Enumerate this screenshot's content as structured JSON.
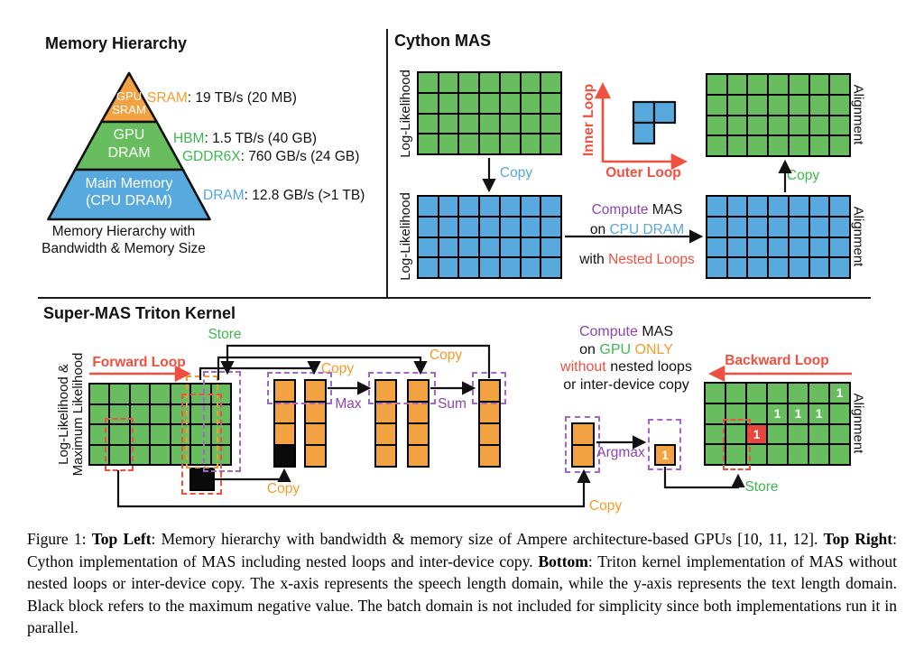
{
  "palette": {
    "ink": "#111111",
    "green_cell": "#68bd5f",
    "blue_cell": "#58a9de",
    "orange_cell": "#f2a240",
    "red_cell": "#e8453c",
    "black_cell": "#0a0a0a",
    "green_text": "#3cb94e",
    "blue_text": "#55a8e0",
    "orange_text": "#f49d2a",
    "red": "#f0503f",
    "purple": "#8d44b8",
    "purple_dash": "#a566cc"
  },
  "memory": {
    "title": "Memory Hierarchy",
    "pyramid_levels": [
      {
        "line1": "GPU",
        "line2": "SRAM",
        "color": "orange_cell"
      },
      {
        "line1": "GPU",
        "line2": "DRAM",
        "color": "green_cell"
      },
      {
        "line1": "Main Memory",
        "line2": "(CPU DRAM)",
        "color": "blue_cell"
      }
    ],
    "specs": [
      {
        "segments": [
          {
            "t": "SRAM",
            "c": "orange_text"
          },
          {
            "t": ": 19 TB/s (20 MB)",
            "c": "ink"
          }
        ]
      },
      {
        "segments": [
          {
            "t": "HBM",
            "c": "green_text"
          },
          {
            "t": ": 1.5 TB/s (40 GB)",
            "c": "ink"
          }
        ]
      },
      {
        "segments": [
          {
            "t": "GDDR6X",
            "c": "green_text"
          },
          {
            "t": ": 760 GB/s (24 GB)",
            "c": "ink"
          }
        ]
      },
      {
        "segments": [
          {
            "t": "DRAM",
            "c": "blue_text"
          },
          {
            "t": ": 12.8 GB/s (>1 TB)",
            "c": "ink"
          }
        ]
      }
    ],
    "caption_line1": "Memory Hierarchy with",
    "caption_line2": "Bandwidth & Memory Size"
  },
  "cython": {
    "title": "Cython MAS",
    "axis_ll_top": "Log-Likelihood",
    "axis_ll_bottom": "Log-Likelihood",
    "axis_align_top": "Alignment",
    "axis_align_bottom": "Alignment",
    "copy_down": "Copy",
    "copy_up": "Copy",
    "inner_loop": "Inner Loop",
    "outer_loop": "Outer Loop",
    "tiles_icon": "nested-loop-order-tiles",
    "compute_line1": [
      {
        "t": "Compute ",
        "c": "purple"
      },
      {
        "t": "MAS",
        "c": "ink"
      }
    ],
    "compute_line2": [
      {
        "t": "on ",
        "c": "ink"
      },
      {
        "t": "CPU DRAM",
        "c": "blue_text"
      }
    ],
    "compute_line3": [
      {
        "t": "with ",
        "c": "ink"
      },
      {
        "t": "Nested Loops",
        "c": "red"
      }
    ],
    "grids": {
      "ll_green": {
        "rows": 4,
        "cols": 7,
        "fill": "green_cell"
      },
      "ll_blue": {
        "rows": 4,
        "cols": 7,
        "fill": "blue_cell"
      },
      "align_green": {
        "rows": 4,
        "cols": 7,
        "fill": "green_cell"
      },
      "align_blue": {
        "rows": 4,
        "cols": 7,
        "fill": "blue_cell"
      }
    }
  },
  "triton": {
    "title": "Super-MAS Triton Kernel",
    "axis_left_line1": "Log-Likelihood &",
    "axis_left_line2": "Maximum Likelihood",
    "axis_right": "Alignment",
    "forward_loop": "Forward Loop",
    "backward_loop": "Backward Loop",
    "store1": "Store",
    "store2": "Store",
    "copy_a": "Copy",
    "copy_b": "Copy",
    "copy_c": "Copy",
    "copy_d": "Copy",
    "max_label": "Max",
    "sum_label": "Sum",
    "argmax_label": "Argmax",
    "compute_line1": [
      {
        "t": "Compute ",
        "c": "purple"
      },
      {
        "t": "MAS",
        "c": "ink"
      }
    ],
    "compute_line2": [
      {
        "t": "on ",
        "c": "ink"
      },
      {
        "t": "GPU",
        "c": "green_text"
      },
      {
        "t": " ONLY",
        "c": "orange_text"
      }
    ],
    "compute_line3": [
      {
        "t": "without",
        "c": "red"
      },
      {
        "t": " nested loops",
        "c": "ink"
      }
    ],
    "compute_line4": [
      {
        "t": "or inter-device copy",
        "c": "ink"
      }
    ],
    "grids": {
      "main": {
        "rows": 4,
        "cols": 7,
        "fill": "green_cell"
      },
      "black_below": {
        "rows": 1,
        "cols": 1,
        "fill": "black_cell"
      },
      "g1l": {
        "rows": 4,
        "cols": 1,
        "fill": "orange_cell",
        "specials": [
          {
            "r": 3,
            "c": 0,
            "fill": "black_cell"
          }
        ]
      },
      "g1r": {
        "rows": 4,
        "cols": 1,
        "fill": "orange_cell"
      },
      "g2l": {
        "rows": 4,
        "cols": 1,
        "fill": "orange_cell"
      },
      "g2r": {
        "rows": 4,
        "cols": 1,
        "fill": "orange_cell"
      },
      "g3": {
        "rows": 4,
        "cols": 1,
        "fill": "orange_cell"
      },
      "argmax_col": {
        "rows": 2,
        "cols": 1,
        "fill": "orange_cell"
      },
      "one_cell": {
        "rows": 1,
        "cols": 1,
        "fill": "orange_cell",
        "specials": [
          {
            "r": 0,
            "c": 0,
            "text": "1"
          }
        ]
      },
      "alignment": {
        "rows": 4,
        "cols": 7,
        "fill": "green_cell",
        "specials": [
          {
            "r": 0,
            "c": 6,
            "text": "1"
          },
          {
            "r": 1,
            "c": 3,
            "text": "1"
          },
          {
            "r": 1,
            "c": 4,
            "text": "1"
          },
          {
            "r": 1,
            "c": 5,
            "text": "1"
          },
          {
            "r": 2,
            "c": 2,
            "fill": "red_cell",
            "text": "1"
          }
        ]
      }
    }
  },
  "caption": {
    "segments": [
      {
        "t": "Figure 1: "
      },
      {
        "t": "Top Left",
        "b": true
      },
      {
        "t": ": Memory hierarchy with bandwidth & memory size of Ampere architecture-based GPUs [10, 11, 12]. "
      },
      {
        "t": "Top Right",
        "b": true
      },
      {
        "t": ": Cython implementation of MAS including nested loops and inter-device copy. "
      },
      {
        "t": "Bottom",
        "b": true
      },
      {
        "t": ": Triton kernel implementation of MAS without nested loops or inter-device copy. The x-axis represents the speech length domain, while the y-axis represents the text length domain. Black block refers to the maximum negative value. The batch domain is not included for simplicity since both implementations run it in parallel."
      }
    ]
  }
}
